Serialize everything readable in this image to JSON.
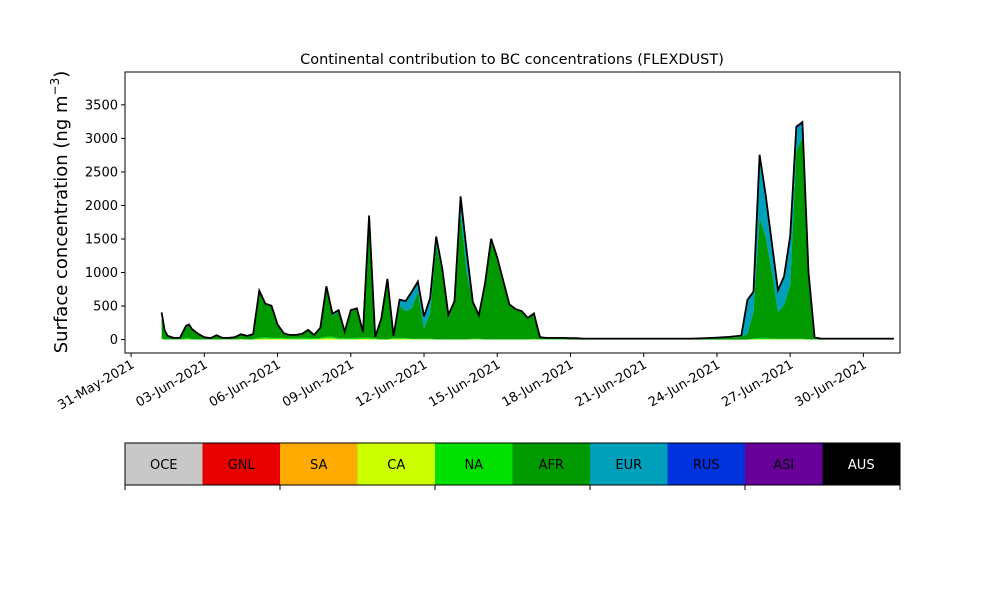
{
  "chart_data": {
    "type": "area",
    "stacked": true,
    "title": "Continental contribution to BC concentrations (FLEXDUST)",
    "ylabel_main": "Surface concentration (ng m",
    "ylabel_exp": "−3",
    "ylabel_close": ")",
    "xlabel": "",
    "x_range": [
      "2021-05-30T18:00",
      "2021-07-01T12:00"
    ],
    "ylim": [
      -200,
      3990
    ],
    "yticks": [
      0,
      500,
      1000,
      1500,
      2000,
      2500,
      3000,
      3500
    ],
    "xticks": [
      {
        "date": "2021-05-31",
        "label": "31-May-2021"
      },
      {
        "date": "2021-06-03",
        "label": "03-Jun-2021"
      },
      {
        "date": "2021-06-06",
        "label": "06-Jun-2021"
      },
      {
        "date": "2021-06-09",
        "label": "09-Jun-2021"
      },
      {
        "date": "2021-06-12",
        "label": "12-Jun-2021"
      },
      {
        "date": "2021-06-15",
        "label": "15-Jun-2021"
      },
      {
        "date": "2021-06-18",
        "label": "18-Jun-2021"
      },
      {
        "date": "2021-06-21",
        "label": "21-Jun-2021"
      },
      {
        "date": "2021-06-24",
        "label": "24-Jun-2021"
      },
      {
        "date": "2021-06-27",
        "label": "27-Jun-2021"
      },
      {
        "date": "2021-06-30",
        "label": "30-Jun-2021"
      }
    ],
    "grid": false,
    "legend_placement": "bottom colorbar",
    "legend": [
      {
        "label": "OCE",
        "color": "#c8c8c8"
      },
      {
        "label": "GNL",
        "color": "#e60000"
      },
      {
        "label": "SA",
        "color": "#ffaa00"
      },
      {
        "label": "CA",
        "color": "#ccff00"
      },
      {
        "label": "NA",
        "color": "#00e000"
      },
      {
        "label": "AFR",
        "color": "#009900"
      },
      {
        "label": "EUR",
        "color": "#00a0bb"
      },
      {
        "label": "RUS",
        "color": "#0033dd"
      },
      {
        "label": "ASI",
        "color": "#660099"
      },
      {
        "label": "AUS",
        "color": "#000000"
      }
    ],
    "x": [
      "2021-06-01T06:00",
      "2021-06-01T09:00",
      "2021-06-01T12:00",
      "2021-06-01T18:00",
      "2021-06-02T00:00",
      "2021-06-02T06:00",
      "2021-06-02T09:00",
      "2021-06-02T12:00",
      "2021-06-02T18:00",
      "2021-06-03T00:00",
      "2021-06-03T06:00",
      "2021-06-03T12:00",
      "2021-06-03T18:00",
      "2021-06-04T00:00",
      "2021-06-04T06:00",
      "2021-06-04T12:00",
      "2021-06-04T18:00",
      "2021-06-05T00:00",
      "2021-06-05T06:00",
      "2021-06-05T12:00",
      "2021-06-05T18:00",
      "2021-06-06T00:00",
      "2021-06-06T06:00",
      "2021-06-06T09:00",
      "2021-06-06T12:00",
      "2021-06-06T18:00",
      "2021-06-07T00:00",
      "2021-06-07T06:00",
      "2021-06-07T12:00",
      "2021-06-07T18:00",
      "2021-06-08T00:00",
      "2021-06-08T06:00",
      "2021-06-08T12:00",
      "2021-06-08T18:00",
      "2021-06-09T00:00",
      "2021-06-09T06:00",
      "2021-06-09T12:00",
      "2021-06-09T18:00",
      "2021-06-10T00:00",
      "2021-06-10T06:00",
      "2021-06-10T12:00",
      "2021-06-10T18:00",
      "2021-06-11T00:00",
      "2021-06-11T06:00",
      "2021-06-11T12:00",
      "2021-06-11T18:00",
      "2021-06-12T00:00",
      "2021-06-12T06:00",
      "2021-06-12T12:00",
      "2021-06-12T18:00",
      "2021-06-13T00:00",
      "2021-06-13T06:00",
      "2021-06-13T12:00",
      "2021-06-13T18:00",
      "2021-06-14T00:00",
      "2021-06-14T06:00",
      "2021-06-14T12:00",
      "2021-06-14T18:00",
      "2021-06-15T00:00",
      "2021-06-15T06:00",
      "2021-06-15T12:00",
      "2021-06-15T18:00",
      "2021-06-16T00:00",
      "2021-06-16T06:00",
      "2021-06-16T12:00",
      "2021-06-16T18:00",
      "2021-06-17T00:00",
      "2021-06-17T06:00",
      "2021-06-17T12:00",
      "2021-06-17T18:00",
      "2021-06-18T00:00",
      "2021-06-18T06:00",
      "2021-06-18T12:00",
      "2021-06-18T18:00",
      "2021-06-19T00:00",
      "2021-06-20T00:00",
      "2021-06-21T00:00",
      "2021-06-22T00:00",
      "2021-06-23T00:00",
      "2021-06-24T00:00",
      "2021-06-24T12:00",
      "2021-06-25T00:00",
      "2021-06-25T06:00",
      "2021-06-25T12:00",
      "2021-06-25T18:00",
      "2021-06-26T00:00",
      "2021-06-26T06:00",
      "2021-06-26T12:00",
      "2021-06-26T18:00",
      "2021-06-27T00:00",
      "2021-06-27T06:00",
      "2021-06-27T12:00",
      "2021-06-27T18:00",
      "2021-06-28T00:00",
      "2021-06-28T06:00",
      "2021-06-28T12:00",
      "2021-06-28T18:00",
      "2021-06-29T00:00",
      "2021-06-30T00:00",
      "2021-06-30T12:00",
      "2021-07-01T06:00"
    ],
    "series": [
      {
        "name": "CA",
        "values": [
          5,
          0,
          0,
          0,
          0,
          5,
          5,
          0,
          0,
          0,
          0,
          0,
          0,
          0,
          0,
          5,
          0,
          0,
          10,
          15,
          10,
          10,
          10,
          5,
          5,
          5,
          5,
          5,
          5,
          10,
          20,
          20,
          5,
          5,
          5,
          5,
          10,
          10,
          5,
          0,
          0,
          10,
          10,
          10,
          5,
          5,
          5,
          5,
          0,
          0,
          0,
          0,
          0,
          0,
          5,
          5,
          0,
          0,
          0,
          0,
          0,
          0,
          0,
          0,
          5,
          0,
          0,
          0,
          0,
          0,
          0,
          0,
          0,
          0,
          0,
          0,
          0,
          0,
          0,
          0,
          0,
          0,
          0,
          5,
          5,
          5,
          5,
          5,
          5,
          5,
          5,
          5,
          0,
          0,
          0,
          0,
          0,
          0,
          0,
          0,
          0
        ]
      },
      {
        "name": "NA",
        "values": [
          20,
          5,
          5,
          5,
          5,
          20,
          20,
          5,
          5,
          5,
          5,
          5,
          5,
          5,
          5,
          5,
          5,
          10,
          20,
          20,
          15,
          15,
          15,
          15,
          15,
          15,
          20,
          20,
          15,
          15,
          25,
          25,
          15,
          15,
          15,
          20,
          20,
          20,
          15,
          5,
          5,
          15,
          15,
          15,
          10,
          10,
          10,
          10,
          5,
          5,
          5,
          5,
          5,
          5,
          10,
          10,
          5,
          5,
          5,
          5,
          5,
          5,
          5,
          5,
          5,
          5,
          5,
          5,
          5,
          5,
          0,
          0,
          0,
          0,
          0,
          0,
          0,
          0,
          0,
          0,
          0,
          0,
          0,
          10,
          20,
          20,
          10,
          10,
          10,
          10,
          10,
          10,
          5,
          5,
          0,
          0,
          0,
          0,
          0,
          0,
          0
        ]
      },
      {
        "name": "AFR",
        "values": [
          380,
          130,
          50,
          20,
          20,
          180,
          200,
          150,
          80,
          30,
          15,
          60,
          20,
          20,
          30,
          70,
          50,
          70,
          700,
          500,
          480,
          200,
          70,
          60,
          50,
          50,
          60,
          120,
          50,
          150,
          700,
          300,
          400,
          100,
          420,
          420,
          80,
          1820,
          20,
          310,
          900,
          30,
          480,
          400,
          450,
          700,
          150,
          380,
          1400,
          1000,
          300,
          570,
          1880,
          1000,
          550,
          350,
          830,
          1500,
          1200,
          850,
          500,
          450,
          420,
          320,
          380,
          30,
          20,
          20,
          20,
          20,
          20,
          20,
          15,
          15,
          15,
          15,
          15,
          15,
          15,
          30,
          30,
          40,
          90,
          400,
          1800,
          1500,
          1000,
          400,
          500,
          800,
          2800,
          3000,
          1000,
          30,
          15,
          15,
          15,
          15,
          15,
          15,
          15
        ]
      },
      {
        "name": "EUR",
        "values": [
          0,
          0,
          0,
          0,
          0,
          0,
          0,
          0,
          0,
          0,
          0,
          0,
          0,
          0,
          0,
          0,
          0,
          0,
          0,
          0,
          0,
          0,
          0,
          0,
          0,
          0,
          0,
          0,
          0,
          0,
          50,
          40,
          20,
          0,
          0,
          20,
          0,
          0,
          0,
          0,
          0,
          0,
          90,
          150,
          250,
          150,
          180,
          220,
          80,
          50,
          60,
          0,
          250,
          250,
          0,
          0,
          0,
          0,
          20,
          20,
          20,
          0,
          0,
          0,
          0,
          0,
          0,
          0,
          0,
          0,
          0,
          0,
          0,
          0,
          0,
          0,
          0,
          0,
          0,
          0,
          10,
          20,
          500,
          300,
          900,
          600,
          400,
          300,
          400,
          700,
          330,
          200,
          0,
          0,
          0,
          0,
          0,
          0,
          0,
          0,
          0
        ]
      },
      {
        "name": "RUS",
        "values": [
          0,
          0,
          0,
          0,
          0,
          0,
          0,
          0,
          0,
          0,
          0,
          0,
          0,
          0,
          0,
          0,
          0,
          0,
          0,
          0,
          0,
          0,
          0,
          0,
          0,
          0,
          0,
          0,
          0,
          0,
          0,
          0,
          0,
          0,
          0,
          0,
          0,
          0,
          0,
          0,
          0,
          0,
          0,
          0,
          0,
          0,
          0,
          0,
          50,
          0,
          0,
          0,
          0,
          60,
          0,
          0,
          0,
          0,
          0,
          0,
          0,
          0,
          0,
          0,
          0,
          0,
          0,
          0,
          0,
          0,
          0,
          0,
          0,
          0,
          0,
          0,
          0,
          0,
          0,
          0,
          0,
          0,
          0,
          0,
          30,
          30,
          20,
          20,
          30,
          30,
          30,
          30,
          0,
          0,
          0,
          0,
          0,
          0,
          0,
          0,
          0
        ]
      },
      {
        "name": "AUS",
        "values": [
          0,
          0,
          0,
          0,
          0,
          0,
          0,
          0,
          0,
          0,
          0,
          0,
          0,
          0,
          0,
          0,
          0,
          0,
          0,
          0,
          0,
          0,
          0,
          0,
          0,
          0,
          0,
          0,
          0,
          0,
          0,
          0,
          0,
          0,
          0,
          0,
          0,
          0,
          0,
          0,
          0,
          0,
          0,
          0,
          0,
          0,
          0,
          0,
          0,
          0,
          0,
          0,
          0,
          0,
          0,
          0,
          0,
          0,
          0,
          0,
          0,
          0,
          0,
          0,
          0,
          0,
          0,
          0,
          0,
          0,
          0,
          0,
          0,
          0,
          0,
          0,
          0,
          0,
          0,
          0,
          0,
          0,
          0,
          0,
          0,
          0,
          0,
          0,
          0,
          0,
          0,
          0,
          0,
          0,
          0,
          0,
          0,
          0,
          0,
          0,
          0
        ]
      }
    ]
  }
}
